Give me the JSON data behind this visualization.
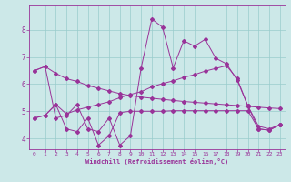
{
  "xlabel": "Windchill (Refroidissement éolien,°C)",
  "background_color": "#cce8e8",
  "line_color": "#993399",
  "grid_color": "#99cccc",
  "xlim": [
    -0.5,
    23.5
  ],
  "ylim": [
    3.6,
    8.9
  ],
  "xticks": [
    0,
    1,
    2,
    3,
    4,
    5,
    6,
    7,
    8,
    9,
    10,
    11,
    12,
    13,
    14,
    15,
    16,
    17,
    18,
    19,
    20,
    21,
    22,
    23
  ],
  "yticks": [
    4,
    5,
    6,
    7,
    8
  ],
  "series1_x": [
    0,
    1,
    2,
    3,
    4,
    5,
    6,
    7,
    8,
    9,
    10,
    11,
    12,
    13,
    14,
    15,
    16,
    17,
    18,
    19,
    20,
    21,
    22,
    23
  ],
  "series1_y": [
    6.5,
    6.65,
    6.4,
    6.2,
    6.1,
    5.95,
    5.85,
    5.75,
    5.65,
    5.58,
    5.52,
    5.48,
    5.44,
    5.4,
    5.36,
    5.33,
    5.3,
    5.27,
    5.24,
    5.21,
    5.18,
    5.15,
    5.12,
    5.1
  ],
  "series2_x": [
    0,
    1,
    2,
    3,
    4,
    5,
    6,
    7,
    8,
    9,
    10,
    11,
    12,
    13,
    14,
    15,
    16,
    17,
    18,
    19,
    20,
    21,
    22,
    23
  ],
  "series2_y": [
    4.75,
    4.85,
    5.25,
    4.35,
    4.25,
    4.75,
    3.75,
    4.1,
    4.95,
    5.0,
    5.0,
    5.0,
    5.0,
    5.02,
    5.02,
    5.02,
    5.02,
    5.02,
    5.02,
    5.02,
    5.02,
    4.35,
    4.3,
    4.5
  ],
  "series3_x": [
    0,
    1,
    2,
    3,
    4,
    5,
    6,
    7,
    8,
    9,
    10,
    11,
    12,
    13,
    14,
    15,
    16,
    17,
    18,
    19,
    20,
    21,
    22,
    23
  ],
  "series3_y": [
    4.75,
    4.85,
    5.25,
    4.9,
    5.05,
    5.15,
    5.25,
    5.35,
    5.5,
    5.62,
    5.72,
    5.9,
    6.02,
    6.12,
    6.25,
    6.35,
    6.48,
    6.58,
    6.68,
    6.2,
    5.2,
    4.45,
    4.35,
    4.5
  ],
  "series4_x": [
    0,
    1,
    2,
    3,
    4,
    5,
    6,
    7,
    8,
    9,
    10,
    11,
    12,
    13,
    14,
    15,
    16,
    17,
    18,
    19,
    20,
    21,
    22,
    23
  ],
  "series4_y": [
    6.5,
    6.65,
    4.75,
    4.85,
    5.25,
    4.35,
    4.25,
    4.75,
    3.75,
    4.1,
    6.6,
    8.4,
    8.1,
    6.6,
    7.6,
    7.4,
    7.65,
    6.95,
    6.75,
    6.15,
    5.2,
    4.35,
    4.3,
    4.5
  ]
}
